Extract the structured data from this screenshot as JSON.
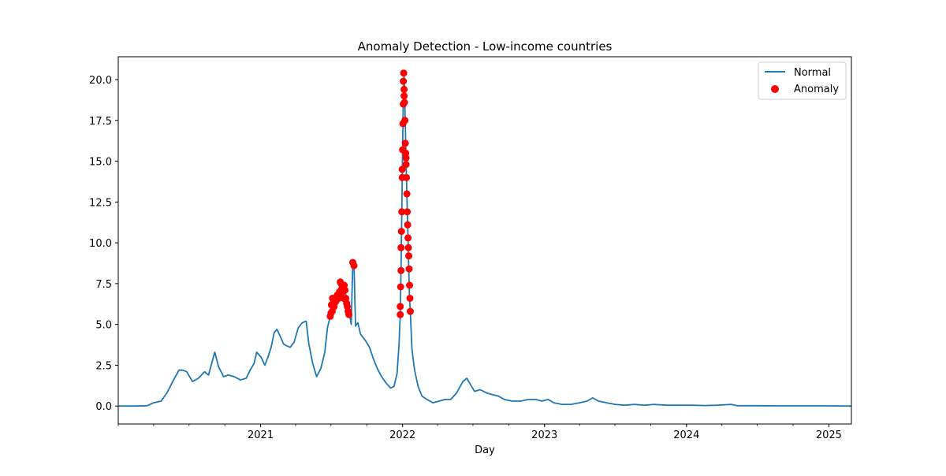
{
  "chart_data": {
    "type": "line",
    "title": "Anomaly Detection - Low-income countries",
    "xlabel": "Day",
    "ylabel": "",
    "x_range": [
      "2020-01-01",
      "2025-02-28"
    ],
    "ylim": [
      -1.1,
      21.4
    ],
    "y_ticks": [
      0.0,
      2.5,
      5.0,
      7.5,
      10.0,
      12.5,
      15.0,
      17.5,
      20.0
    ],
    "y_tick_labels": [
      "0.0",
      "2.5",
      "5.0",
      "7.5",
      "10.0",
      "12.5",
      "15.0",
      "17.5",
      "20.0"
    ],
    "x_major_ticks": [
      "2021-01-01",
      "2022-01-01",
      "2023-01-01",
      "2024-01-01",
      "2025-01-01"
    ],
    "x_tick_labels": [
      "2021",
      "2022",
      "2023",
      "2024",
      "2025"
    ],
    "grid": false,
    "legend_position": "upper right",
    "legend": [
      {
        "label": "Normal",
        "kind": "line",
        "color": "#1f77b4"
      },
      {
        "label": "Anomaly",
        "kind": "marker",
        "color": "#ff0000"
      }
    ],
    "series": [
      {
        "name": "Normal",
        "kind": "line",
        "color": "#1f77b4",
        "points": [
          [
            "2020-01-01",
            0.0
          ],
          [
            "2020-02-15",
            0.0
          ],
          [
            "2020-03-15",
            0.02
          ],
          [
            "2020-04-01",
            0.2
          ],
          [
            "2020-04-20",
            0.3
          ],
          [
            "2020-05-05",
            0.8
          ],
          [
            "2020-05-20",
            1.5
          ],
          [
            "2020-06-05",
            2.2
          ],
          [
            "2020-06-15",
            2.2
          ],
          [
            "2020-06-25",
            2.1
          ],
          [
            "2020-07-10",
            1.5
          ],
          [
            "2020-07-25",
            1.7
          ],
          [
            "2020-08-10",
            2.1
          ],
          [
            "2020-08-20",
            1.9
          ],
          [
            "2020-08-28",
            2.6
          ],
          [
            "2020-09-05",
            3.3
          ],
          [
            "2020-09-15",
            2.4
          ],
          [
            "2020-09-28",
            1.8
          ],
          [
            "2020-10-10",
            1.9
          ],
          [
            "2020-10-25",
            1.8
          ],
          [
            "2020-11-10",
            1.6
          ],
          [
            "2020-11-25",
            1.7
          ],
          [
            "2020-12-05",
            2.2
          ],
          [
            "2020-12-15",
            2.6
          ],
          [
            "2020-12-22",
            3.3
          ],
          [
            "2021-01-02",
            3.0
          ],
          [
            "2021-01-12",
            2.5
          ],
          [
            "2021-01-20",
            3.0
          ],
          [
            "2021-01-28",
            3.6
          ],
          [
            "2021-02-05",
            4.5
          ],
          [
            "2021-02-12",
            4.7
          ],
          [
            "2021-02-20",
            4.3
          ],
          [
            "2021-03-01",
            3.8
          ],
          [
            "2021-03-08",
            3.7
          ],
          [
            "2021-03-18",
            3.6
          ],
          [
            "2021-03-28",
            3.9
          ],
          [
            "2021-04-08",
            4.8
          ],
          [
            "2021-04-18",
            5.1
          ],
          [
            "2021-04-28",
            5.2
          ],
          [
            "2021-05-05",
            3.8
          ],
          [
            "2021-05-15",
            2.6
          ],
          [
            "2021-05-25",
            1.8
          ],
          [
            "2021-06-05",
            2.3
          ],
          [
            "2021-06-15",
            3.3
          ],
          [
            "2021-06-22",
            4.8
          ],
          [
            "2021-06-29",
            5.5
          ],
          [
            "2021-07-10",
            6.0
          ],
          [
            "2021-07-25",
            6.7
          ],
          [
            "2021-08-05",
            7.2
          ],
          [
            "2021-08-12",
            6.4
          ],
          [
            "2021-08-18",
            5.6
          ],
          [
            "2021-08-22",
            5.0
          ],
          [
            "2021-08-26",
            8.7
          ],
          [
            "2021-08-29",
            8.8
          ],
          [
            "2021-09-02",
            4.9
          ],
          [
            "2021-09-08",
            5.1
          ],
          [
            "2021-09-15",
            4.4
          ],
          [
            "2021-09-28",
            4.0
          ],
          [
            "2021-10-08",
            3.6
          ],
          [
            "2021-10-18",
            2.9
          ],
          [
            "2021-10-28",
            2.3
          ],
          [
            "2021-11-08",
            1.8
          ],
          [
            "2021-11-20",
            1.4
          ],
          [
            "2021-12-01",
            1.1
          ],
          [
            "2021-12-10",
            1.2
          ],
          [
            "2021-12-18",
            2.0
          ],
          [
            "2021-12-23",
            3.8
          ],
          [
            "2021-12-26",
            5.6
          ],
          [
            "2021-12-28",
            8.3
          ],
          [
            "2021-12-30",
            11.9
          ],
          [
            "2022-01-01",
            15.7
          ],
          [
            "2022-01-03",
            19.0
          ],
          [
            "2022-01-05",
            20.4
          ],
          [
            "2022-01-07",
            18.5
          ],
          [
            "2022-01-09",
            16.2
          ],
          [
            "2022-01-11",
            14.0
          ],
          [
            "2022-01-13",
            12.0
          ],
          [
            "2022-01-15",
            10.3
          ],
          [
            "2022-01-17",
            8.4
          ],
          [
            "2022-01-19",
            6.6
          ],
          [
            "2022-01-21",
            5.8
          ],
          [
            "2022-01-25",
            3.5
          ],
          [
            "2022-02-01",
            2.2
          ],
          [
            "2022-02-10",
            1.2
          ],
          [
            "2022-02-20",
            0.6
          ],
          [
            "2022-03-05",
            0.4
          ],
          [
            "2022-03-20",
            0.2
          ],
          [
            "2022-04-05",
            0.3
          ],
          [
            "2022-04-20",
            0.4
          ],
          [
            "2022-05-05",
            0.4
          ],
          [
            "2022-05-20",
            0.8
          ],
          [
            "2022-06-05",
            1.5
          ],
          [
            "2022-06-15",
            1.7
          ],
          [
            "2022-06-25",
            1.3
          ],
          [
            "2022-07-05",
            0.9
          ],
          [
            "2022-07-20",
            1.0
          ],
          [
            "2022-08-05",
            0.8
          ],
          [
            "2022-08-20",
            0.7
          ],
          [
            "2022-09-05",
            0.6
          ],
          [
            "2022-09-20",
            0.4
          ],
          [
            "2022-10-10",
            0.3
          ],
          [
            "2022-11-01",
            0.3
          ],
          [
            "2022-11-20",
            0.4
          ],
          [
            "2022-12-10",
            0.4
          ],
          [
            "2022-12-25",
            0.3
          ],
          [
            "2023-01-10",
            0.4
          ],
          [
            "2023-01-25",
            0.2
          ],
          [
            "2023-02-15",
            0.1
          ],
          [
            "2023-03-10",
            0.1
          ],
          [
            "2023-04-01",
            0.2
          ],
          [
            "2023-04-20",
            0.3
          ],
          [
            "2023-05-05",
            0.5
          ],
          [
            "2023-05-20",
            0.3
          ],
          [
            "2023-06-10",
            0.2
          ],
          [
            "2023-07-01",
            0.1
          ],
          [
            "2023-07-25",
            0.05
          ],
          [
            "2023-08-20",
            0.1
          ],
          [
            "2023-09-15",
            0.05
          ],
          [
            "2023-10-10",
            0.1
          ],
          [
            "2023-11-10",
            0.05
          ],
          [
            "2023-12-10",
            0.05
          ],
          [
            "2024-01-15",
            0.05
          ],
          [
            "2024-02-15",
            0.03
          ],
          [
            "2024-03-20",
            0.05
          ],
          [
            "2024-04-25",
            0.1
          ],
          [
            "2024-05-10",
            0.02
          ],
          [
            "2024-07-01",
            0.02
          ],
          [
            "2024-09-01",
            0.01
          ],
          [
            "2024-11-01",
            0.01
          ],
          [
            "2025-01-01",
            0.01
          ],
          [
            "2025-02-28",
            0.0
          ]
        ]
      },
      {
        "name": "Anomaly",
        "kind": "scatter",
        "color": "#ff0000",
        "points": [
          [
            "2021-06-29",
            5.5
          ],
          [
            "2021-07-01",
            5.7
          ],
          [
            "2021-07-02",
            6.2
          ],
          [
            "2021-07-04",
            5.8
          ],
          [
            "2021-07-05",
            6.6
          ],
          [
            "2021-07-07",
            6.3
          ],
          [
            "2021-07-09",
            6.1
          ],
          [
            "2021-07-11",
            6.5
          ],
          [
            "2021-07-13",
            6.4
          ],
          [
            "2021-07-15",
            6.6
          ],
          [
            "2021-07-17",
            6.8
          ],
          [
            "2021-07-19",
            6.7
          ],
          [
            "2021-07-21",
            6.6
          ],
          [
            "2021-07-23",
            7.0
          ],
          [
            "2021-07-25",
            7.6
          ],
          [
            "2021-07-27",
            7.5
          ],
          [
            "2021-07-29",
            7.2
          ],
          [
            "2021-07-31",
            7.0
          ],
          [
            "2021-08-02",
            6.6
          ],
          [
            "2021-08-04",
            7.4
          ],
          [
            "2021-08-06",
            7.1
          ],
          [
            "2021-08-08",
            6.6
          ],
          [
            "2021-08-10",
            6.3
          ],
          [
            "2021-08-12",
            6.1
          ],
          [
            "2021-08-14",
            5.8
          ],
          [
            "2021-08-16",
            5.6
          ],
          [
            "2021-08-26",
            8.8
          ],
          [
            "2021-08-29",
            8.6
          ],
          [
            "2021-12-26",
            5.6
          ],
          [
            "2021-12-26",
            6.1
          ],
          [
            "2021-12-27",
            7.3
          ],
          [
            "2021-12-28",
            8.3
          ],
          [
            "2021-12-28",
            9.7
          ],
          [
            "2021-12-29",
            10.7
          ],
          [
            "2021-12-30",
            11.9
          ],
          [
            "2021-12-31",
            14.0
          ],
          [
            "2021-12-31",
            14.5
          ],
          [
            "2022-01-01",
            15.7
          ],
          [
            "2022-01-02",
            17.3
          ],
          [
            "2022-01-03",
            18.5
          ],
          [
            "2022-01-03",
            19.9
          ],
          [
            "2022-01-04",
            20.4
          ],
          [
            "2022-01-05",
            19.4
          ],
          [
            "2022-01-05",
            19.0
          ],
          [
            "2022-01-06",
            18.6
          ],
          [
            "2022-01-07",
            17.5
          ],
          [
            "2022-01-08",
            16.1
          ],
          [
            "2022-01-09",
            15.5
          ],
          [
            "2022-01-10",
            15.2
          ],
          [
            "2022-01-10",
            14.8
          ],
          [
            "2022-01-11",
            14.0
          ],
          [
            "2022-01-12",
            13.0
          ],
          [
            "2022-01-13",
            11.9
          ],
          [
            "2022-01-14",
            11.1
          ],
          [
            "2022-01-15",
            10.3
          ],
          [
            "2022-01-16",
            9.7
          ],
          [
            "2022-01-17",
            9.2
          ],
          [
            "2022-01-18",
            8.4
          ],
          [
            "2022-01-19",
            7.4
          ],
          [
            "2022-01-20",
            6.6
          ],
          [
            "2022-01-21",
            5.8
          ]
        ]
      }
    ]
  }
}
